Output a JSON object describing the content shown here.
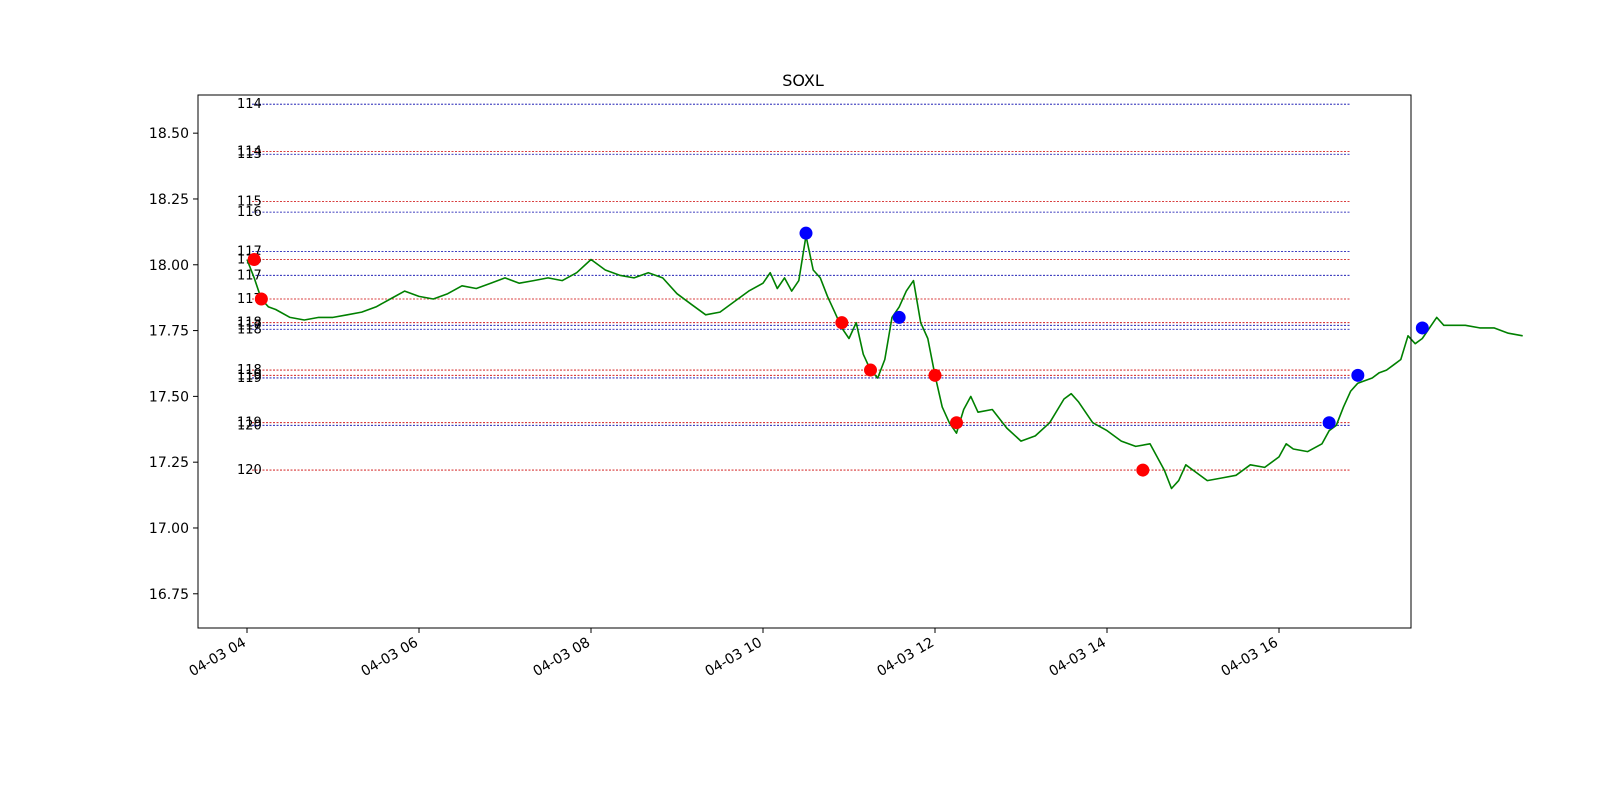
{
  "chart_data": {
    "type": "line",
    "title": "SOXL",
    "xlabel": "",
    "ylabel": "",
    "x_range": [
      "04-03 03:35",
      "04-03 17:40"
    ],
    "ylim": [
      16.62,
      18.645
    ],
    "y_ticks": [
      16.75,
      17.0,
      17.25,
      17.5,
      17.75,
      18.0,
      18.25,
      18.5
    ],
    "y_tick_labels": [
      "16.75",
      "17.00",
      "17.25",
      "17.50",
      "17.75",
      "18.00",
      "18.25",
      "18.50"
    ],
    "x_ticks": [
      "04-03 04:00",
      "04-03 06:00",
      "04-03 08:00",
      "04-03 10:00",
      "04-03 12:00",
      "04-03 14:00",
      "04-03 16:00"
    ],
    "x_tick_labels": [
      "04-03 04",
      "04-03 06",
      "04-03 08",
      "04-03 10",
      "04-03 12",
      "04-03 14",
      "04-03 16"
    ],
    "grid": false,
    "line_color": "#008000",
    "series": [
      {
        "points": [
          [
            "04:00",
            18.02
          ],
          [
            "04:05",
            17.95
          ],
          [
            "04:10",
            17.87
          ],
          [
            "04:15",
            17.84
          ],
          [
            "04:20",
            17.83
          ],
          [
            "04:30",
            17.8
          ],
          [
            "04:40",
            17.79
          ],
          [
            "04:50",
            17.8
          ],
          [
            "05:00",
            17.8
          ],
          [
            "05:10",
            17.81
          ],
          [
            "05:20",
            17.82
          ],
          [
            "05:30",
            17.84
          ],
          [
            "05:40",
            17.87
          ],
          [
            "05:50",
            17.9
          ],
          [
            "06:00",
            17.88
          ],
          [
            "06:10",
            17.87
          ],
          [
            "06:20",
            17.89
          ],
          [
            "06:30",
            17.92
          ],
          [
            "06:40",
            17.91
          ],
          [
            "06:50",
            17.93
          ],
          [
            "07:00",
            17.95
          ],
          [
            "07:10",
            17.93
          ],
          [
            "07:20",
            17.94
          ],
          [
            "07:30",
            17.95
          ],
          [
            "07:40",
            17.94
          ],
          [
            "07:50",
            17.97
          ],
          [
            "08:00",
            18.02
          ],
          [
            "08:10",
            17.98
          ],
          [
            "08:20",
            17.96
          ],
          [
            "08:30",
            17.95
          ],
          [
            "08:40",
            17.97
          ],
          [
            "08:50",
            17.95
          ],
          [
            "09:00",
            17.89
          ],
          [
            "09:10",
            17.85
          ],
          [
            "09:20",
            17.81
          ],
          [
            "09:30",
            17.82
          ],
          [
            "09:40",
            17.86
          ],
          [
            "09:50",
            17.9
          ],
          [
            "10:00",
            17.93
          ],
          [
            "10:05",
            17.97
          ],
          [
            "10:10",
            17.91
          ],
          [
            "10:15",
            17.95
          ],
          [
            "10:20",
            17.9
          ],
          [
            "10:25",
            17.94
          ],
          [
            "10:30",
            18.11
          ],
          [
            "10:35",
            17.98
          ],
          [
            "10:40",
            17.95
          ],
          [
            "10:45",
            17.88
          ],
          [
            "10:50",
            17.82
          ],
          [
            "10:55",
            17.76
          ],
          [
            "11:00",
            17.72
          ],
          [
            "11:05",
            17.78
          ],
          [
            "11:10",
            17.66
          ],
          [
            "11:15",
            17.6
          ],
          [
            "11:20",
            17.57
          ],
          [
            "11:25",
            17.64
          ],
          [
            "11:30",
            17.8
          ],
          [
            "11:35",
            17.84
          ],
          [
            "11:40",
            17.9
          ],
          [
            "11:45",
            17.94
          ],
          [
            "11:50",
            17.78
          ],
          [
            "11:55",
            17.72
          ],
          [
            "12:00",
            17.58
          ],
          [
            "12:05",
            17.46
          ],
          [
            "12:10",
            17.4
          ],
          [
            "12:15",
            17.36
          ],
          [
            "12:20",
            17.45
          ],
          [
            "12:25",
            17.5
          ],
          [
            "12:30",
            17.44
          ],
          [
            "12:40",
            17.45
          ],
          [
            "12:50",
            17.38
          ],
          [
            "13:00",
            17.33
          ],
          [
            "13:10",
            17.35
          ],
          [
            "13:20",
            17.4
          ],
          [
            "13:30",
            17.49
          ],
          [
            "13:35",
            17.51
          ],
          [
            "13:40",
            17.48
          ],
          [
            "13:50",
            17.4
          ],
          [
            "14:00",
            17.37
          ],
          [
            "14:10",
            17.33
          ],
          [
            "14:20",
            17.31
          ],
          [
            "14:30",
            17.32
          ],
          [
            "14:40",
            17.22
          ],
          [
            "14:45",
            17.15
          ],
          [
            "14:50",
            17.18
          ],
          [
            "14:55",
            17.24
          ],
          [
            "15:00",
            17.22
          ],
          [
            "15:10",
            17.18
          ],
          [
            "15:20",
            17.19
          ],
          [
            "15:30",
            17.2
          ],
          [
            "15:40",
            17.24
          ],
          [
            "15:50",
            17.23
          ],
          [
            "16:00",
            17.27
          ],
          [
            "16:05",
            17.32
          ],
          [
            "16:10",
            17.3
          ],
          [
            "16:20",
            17.29
          ],
          [
            "16:30",
            17.32
          ],
          [
            "16:35",
            17.37
          ],
          [
            "16:40",
            17.39
          ],
          [
            "16:45",
            17.46
          ],
          [
            "16:50",
            17.52
          ],
          [
            "16:55",
            17.55
          ],
          [
            "17:00",
            17.56
          ],
          [
            "17:05",
            17.57
          ],
          [
            "17:10",
            17.59
          ],
          [
            "17:15",
            17.6
          ],
          [
            "17:20",
            17.62
          ],
          [
            "17:25",
            17.64
          ],
          [
            "17:30",
            17.73
          ],
          [
            "17:35",
            17.7
          ],
          [
            "17:40",
            17.72
          ],
          [
            "17:45",
            17.76
          ],
          [
            "17:50",
            17.8
          ],
          [
            "17:55",
            17.77
          ],
          [
            "18:00",
            17.77
          ],
          [
            "18:10",
            17.77
          ],
          [
            "18:20",
            17.76
          ],
          [
            "18:30",
            17.76
          ],
          [
            "18:40",
            17.74
          ],
          [
            "18:50",
            17.73
          ]
        ]
      }
    ],
    "markers": [
      {
        "time": "04:05",
        "value": 18.02,
        "color": "#ff0000"
      },
      {
        "time": "04:10",
        "value": 17.87,
        "color": "#ff0000"
      },
      {
        "time": "10:30",
        "value": 18.12,
        "color": "#0000ff"
      },
      {
        "time": "10:55",
        "value": 17.78,
        "color": "#ff0000"
      },
      {
        "time": "11:15",
        "value": 17.6,
        "color": "#ff0000"
      },
      {
        "time": "11:35",
        "value": 17.8,
        "color": "#0000ff"
      },
      {
        "time": "12:00",
        "value": 17.58,
        "color": "#ff0000"
      },
      {
        "time": "12:15",
        "value": 17.4,
        "color": "#ff0000"
      },
      {
        "time": "14:25",
        "value": 17.22,
        "color": "#ff0000"
      },
      {
        "time": "16:35",
        "value": 17.4,
        "color": "#0000ff"
      },
      {
        "time": "16:55",
        "value": 17.58,
        "color": "#0000ff"
      },
      {
        "time": "17:40",
        "value": 17.76,
        "color": "#0000ff"
      }
    ],
    "levels": [
      {
        "value": 18.61,
        "label": "114",
        "color": "#0000aa"
      },
      {
        "value": 18.43,
        "label": "114",
        "color": "#cc0000"
      },
      {
        "value": 18.42,
        "label": "113",
        "color": "#0000aa"
      },
      {
        "value": 18.24,
        "label": "115",
        "color": "#cc0000"
      },
      {
        "value": 18.2,
        "label": "116",
        "color": "#0000aa"
      },
      {
        "value": 18.05,
        "label": "117",
        "color": "#0000aa"
      },
      {
        "value": 18.02,
        "label": "116",
        "color": "#cc0000"
      },
      {
        "value": 17.96,
        "label": "117",
        "color": "#0000aa"
      },
      {
        "value": 17.87,
        "label": "117",
        "color": "#cc0000"
      },
      {
        "value": 17.78,
        "label": "118",
        "color": "#cc0000"
      },
      {
        "value": 17.77,
        "label": "117",
        "color": "#0000aa"
      },
      {
        "value": 17.755,
        "label": "118",
        "color": "#0000aa"
      },
      {
        "value": 17.6,
        "label": "118",
        "color": "#cc0000"
      },
      {
        "value": 17.58,
        "label": "119",
        "color": "#cc0000"
      },
      {
        "value": 17.57,
        "label": "119",
        "color": "#0000aa"
      },
      {
        "value": 17.4,
        "label": "119",
        "color": "#cc0000"
      },
      {
        "value": 17.39,
        "label": "120",
        "color": "#0000aa"
      },
      {
        "value": 17.22,
        "label": "120",
        "color": "#cc0000"
      }
    ]
  }
}
